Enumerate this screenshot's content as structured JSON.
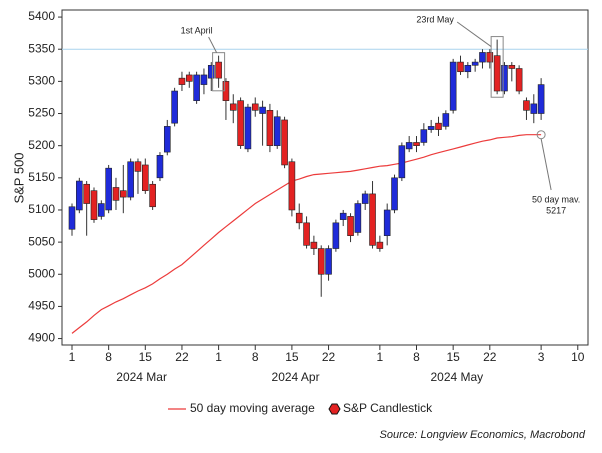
{
  "chart_data": {
    "type": "candlestick",
    "y_label": "S&P 500",
    "source": "Source: Longview Economics, Macrobond",
    "categories": [
      "2024-03-01",
      "2024-03-04",
      "2024-03-05",
      "2024-03-06",
      "2024-03-07",
      "2024-03-08",
      "2024-03-11",
      "2024-03-12",
      "2024-03-13",
      "2024-03-14",
      "2024-03-15",
      "2024-03-18",
      "2024-03-19",
      "2024-03-20",
      "2024-03-21",
      "2024-03-22",
      "2024-03-25",
      "2024-03-26",
      "2024-03-27",
      "2024-03-28",
      "2024-04-01",
      "2024-04-02",
      "2024-04-03",
      "2024-04-04",
      "2024-04-05",
      "2024-04-08",
      "2024-04-09",
      "2024-04-10",
      "2024-04-11",
      "2024-04-12",
      "2024-04-15",
      "2024-04-16",
      "2024-04-17",
      "2024-04-18",
      "2024-04-19",
      "2024-04-22",
      "2024-04-23",
      "2024-04-24",
      "2024-04-25",
      "2024-04-26",
      "2024-04-29",
      "2024-04-30",
      "2024-05-01",
      "2024-05-02",
      "2024-05-03",
      "2024-05-06",
      "2024-05-07",
      "2024-05-08",
      "2024-05-09",
      "2024-05-10",
      "2024-05-13",
      "2024-05-14",
      "2024-05-15",
      "2024-05-16",
      "2024-05-17",
      "2024-05-20",
      "2024-05-21",
      "2024-05-22",
      "2024-05-23",
      "2024-05-24",
      "2024-05-28",
      "2024-05-29",
      "2024-05-30",
      "2024-05-31",
      "2024-06-03",
      "2024-06-04",
      "2024-06-05",
      "2024-06-06",
      "2024-06-07",
      "2024-06-10"
    ],
    "series": [
      {
        "name": "S&P Candlestick",
        "up_color": "#1f2bd9",
        "down_color": "#e32222",
        "open": [
          5070,
          5100,
          5140,
          5130,
          5090,
          5100,
          5135,
          5130,
          5120,
          5175,
          5170,
          5140,
          5150,
          5190,
          5235,
          5305,
          5310,
          5270,
          5295,
          5305,
          5330,
          5300,
          5265,
          5270,
          5195,
          5265,
          5250,
          5255,
          5200,
          5240,
          5175,
          5095,
          5080,
          5050,
          5040,
          5000,
          5040,
          5085,
          5090,
          5065,
          5110,
          5125,
          5050,
          5060,
          5100,
          5150,
          5195,
          5205,
          5205,
          5225,
          5235,
          5230,
          5255,
          5330,
          5315,
          5325,
          5330,
          5345,
          5340,
          5285,
          5325,
          5320,
          5270,
          5250,
          5250,
          null,
          null,
          null,
          null,
          null
        ],
        "high": [
          5110,
          5150,
          5145,
          5135,
          5115,
          5170,
          5150,
          5170,
          5180,
          5180,
          5180,
          5145,
          5190,
          5240,
          5290,
          5315,
          5315,
          5315,
          5320,
          5330,
          5340,
          5305,
          5280,
          5275,
          5265,
          5275,
          5270,
          5265,
          5255,
          5245,
          5180,
          5110,
          5090,
          5060,
          5045,
          5045,
          5085,
          5100,
          5095,
          5115,
          5130,
          5145,
          5060,
          5110,
          5155,
          5205,
          5215,
          5215,
          5235,
          5240,
          5245,
          5255,
          5335,
          5340,
          5330,
          5335,
          5350,
          5350,
          5365,
          5330,
          5330,
          5325,
          5275,
          5280,
          5305,
          null,
          null,
          null,
          null,
          null
        ],
        "low": [
          5060,
          5095,
          5060,
          5080,
          5085,
          5095,
          5100,
          5095,
          5115,
          5125,
          5125,
          5100,
          5145,
          5185,
          5230,
          5285,
          5290,
          5265,
          5280,
          5285,
          5290,
          5240,
          5235,
          5195,
          5190,
          5245,
          5200,
          5190,
          5195,
          5165,
          5090,
          5070,
          5040,
          5030,
          4965,
          4990,
          5035,
          5075,
          5050,
          5060,
          5100,
          5040,
          5035,
          5045,
          5095,
          5145,
          5190,
          5190,
          5200,
          5220,
          5215,
          5225,
          5250,
          5310,
          5305,
          5315,
          5320,
          5320,
          5280,
          5280,
          5300,
          5280,
          5240,
          5235,
          5240,
          null,
          null,
          null,
          null,
          null
        ],
        "close": [
          5105,
          5145,
          5110,
          5085,
          5110,
          5165,
          5115,
          5120,
          5175,
          5160,
          5130,
          5105,
          5185,
          5230,
          5285,
          5295,
          5300,
          5310,
          5310,
          5325,
          5305,
          5270,
          5255,
          5200,
          5260,
          5255,
          5260,
          5200,
          5245,
          5170,
          5100,
          5080,
          5045,
          5040,
          5000,
          5040,
          5080,
          5095,
          5060,
          5110,
          5125,
          5045,
          5040,
          5100,
          5150,
          5200,
          5205,
          5200,
          5225,
          5230,
          5225,
          5250,
          5330,
          5315,
          5325,
          5330,
          5345,
          5330,
          5285,
          5325,
          5320,
          5285,
          5255,
          5265,
          5295,
          null,
          null,
          null,
          null,
          null
        ]
      },
      {
        "name": "50 day moving average",
        "type": "line",
        "color": "#ec3b3b",
        "values": [
          4908,
          4917,
          4926,
          4936,
          4945,
          4951,
          4957,
          4962,
          4968,
          4974,
          4979,
          4985,
          4993,
          5000,
          5008,
          5015,
          5025,
          5035,
          5045,
          5055,
          5065,
          5074,
          5083,
          5092,
          5101,
          5110,
          5117,
          5124,
          5131,
          5138,
          5145,
          5148,
          5152,
          5155,
          5156,
          5157,
          5158,
          5159,
          5160,
          5162,
          5164,
          5166,
          5168,
          5169,
          5171,
          5173,
          5176,
          5179,
          5182,
          5186,
          5189,
          5192,
          5195,
          5198,
          5201,
          5204,
          5207,
          5209,
          5212,
          5213,
          5214,
          5216,
          5217,
          5217,
          5217,
          null,
          null,
          null,
          null,
          null
        ]
      }
    ],
    "ylim": [
      4890,
      5411
    ],
    "yticks": [
      4900,
      4950,
      5000,
      5050,
      5100,
      5150,
      5200,
      5250,
      5300,
      5350,
      5400
    ],
    "xticks": [
      {
        "value": "2024-03-01",
        "label": "1"
      },
      {
        "value": "2024-03-08",
        "label": "8"
      },
      {
        "value": "2024-03-15",
        "label": "15"
      },
      {
        "value": "2024-03-22",
        "label": "22"
      },
      {
        "value": "2024-04-01",
        "label": "1"
      },
      {
        "value": "2024-04-08",
        "label": "8"
      },
      {
        "value": "2024-04-15",
        "label": "15"
      },
      {
        "value": "2024-04-22",
        "label": "22"
      },
      {
        "value": "2024-05-01",
        "label": "1"
      },
      {
        "value": "2024-05-08",
        "label": "8"
      },
      {
        "value": "2024-05-15",
        "label": "15"
      },
      {
        "value": "2024-05-22",
        "label": "22"
      },
      {
        "value": "2024-06-03",
        "label": "3"
      },
      {
        "value": "2024-06-10",
        "label": "10"
      }
    ],
    "xgroups": [
      {
        "label": "2024 Mar",
        "start": "2024-03-01",
        "end": "2024-03-28"
      },
      {
        "label": "2024 Apr",
        "start": "2024-04-01",
        "end": "2024-04-30"
      },
      {
        "label": "2024 May",
        "start": "2024-05-01",
        "end": "2024-05-31"
      }
    ],
    "hlines": [
      {
        "value": 5350,
        "color": "#a9d3ee"
      }
    ],
    "annotations": [
      {
        "text": "1st April",
        "x": "2024-04-01"
      },
      {
        "text": "23rd May",
        "x": "2024-05-23"
      },
      {
        "text": "50 day mav.",
        "value": 5217,
        "x": "2024-06-03"
      }
    ]
  }
}
